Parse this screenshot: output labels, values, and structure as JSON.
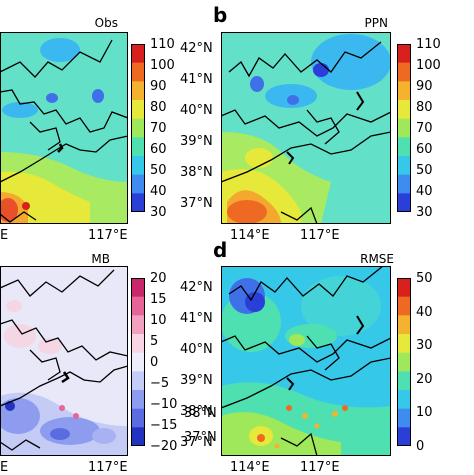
{
  "panels": {
    "a": {
      "title": "Obs",
      "letter": "",
      "lon_labels": [
        "E",
        "117°E"
      ],
      "lat_labels": [],
      "colorbar": [
        "110",
        "100",
        "90",
        "80",
        "70",
        "60",
        "50",
        "40",
        "30"
      ]
    },
    "b": {
      "title": "PPN",
      "letter": "b",
      "lon_labels": [
        "114°E",
        "117°E"
      ],
      "lat_labels": [
        "42°N",
        "41°N",
        "40°N",
        "39°N",
        "38°N",
        "37°N"
      ],
      "colorbar": [
        "110",
        "100",
        "90",
        "80",
        "70",
        "60",
        "50",
        "40",
        "30"
      ]
    },
    "c": {
      "title": "MB",
      "letter": "",
      "lon_labels": [
        "E",
        "117°E"
      ],
      "lat_labels": [],
      "colorbar": [
        "20",
        "15",
        "10",
        "5",
        "0",
        "−5",
        "−10",
        "−15",
        "−20"
      ],
      "overlap_labels": [
        "38°N",
        "37°N"
      ]
    },
    "d": {
      "title": "RMSE",
      "letter": "d",
      "lon_labels": [
        "114°E",
        "117°E"
      ],
      "lat_labels": [
        "42°N",
        "41°N",
        "40°N",
        "39°N",
        "38°N",
        "37°N"
      ],
      "colorbar": [
        "50",
        "40",
        "30",
        "20",
        "10",
        "0"
      ]
    }
  },
  "colors": {
    "rainbow": [
      "#2a3fd8",
      "#3f8cf0",
      "#36c8e8",
      "#4ee0b0",
      "#9ee85a",
      "#e6e83a",
      "#f4b22e",
      "#ee6a22",
      "#d8201c"
    ],
    "diverging": [
      "#2233c0",
      "#5a6ce0",
      "#8e9cf0",
      "#c4ccf8",
      "#eeeefa",
      "#f8d4e4",
      "#f2a0c0",
      "#e66498",
      "#c8286a"
    ]
  }
}
